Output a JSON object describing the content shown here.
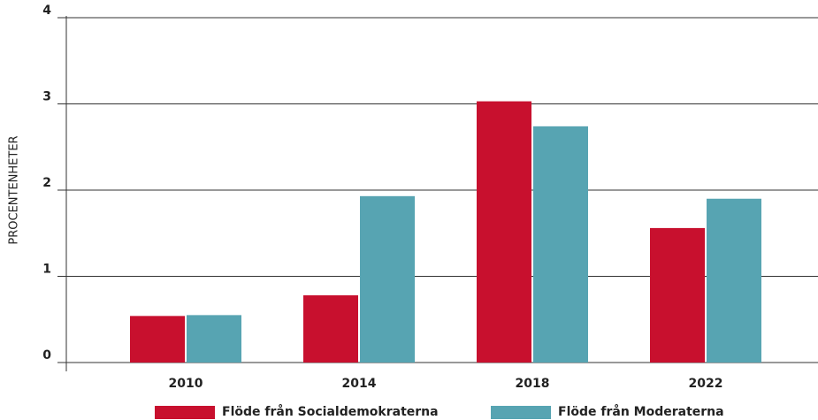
{
  "chart_data": {
    "type": "bar",
    "y_label": "PROCENTENHETER",
    "categories": [
      "2010",
      "2014",
      "2018",
      "2022"
    ],
    "series": [
      {
        "name": "Flöde från Socialdemokraterna",
        "color": "#c8102e",
        "values": [
          0.54,
          0.78,
          3.03,
          1.56
        ]
      },
      {
        "name": "Flöde från Moderaterna",
        "color": "#57a4b2",
        "values": [
          0.55,
          1.93,
          2.74,
          1.9
        ]
      }
    ],
    "ylim": [
      0,
      4
    ],
    "yticks": [
      0,
      1,
      2,
      3,
      4
    ],
    "grid": true,
    "legend": "bottom"
  }
}
